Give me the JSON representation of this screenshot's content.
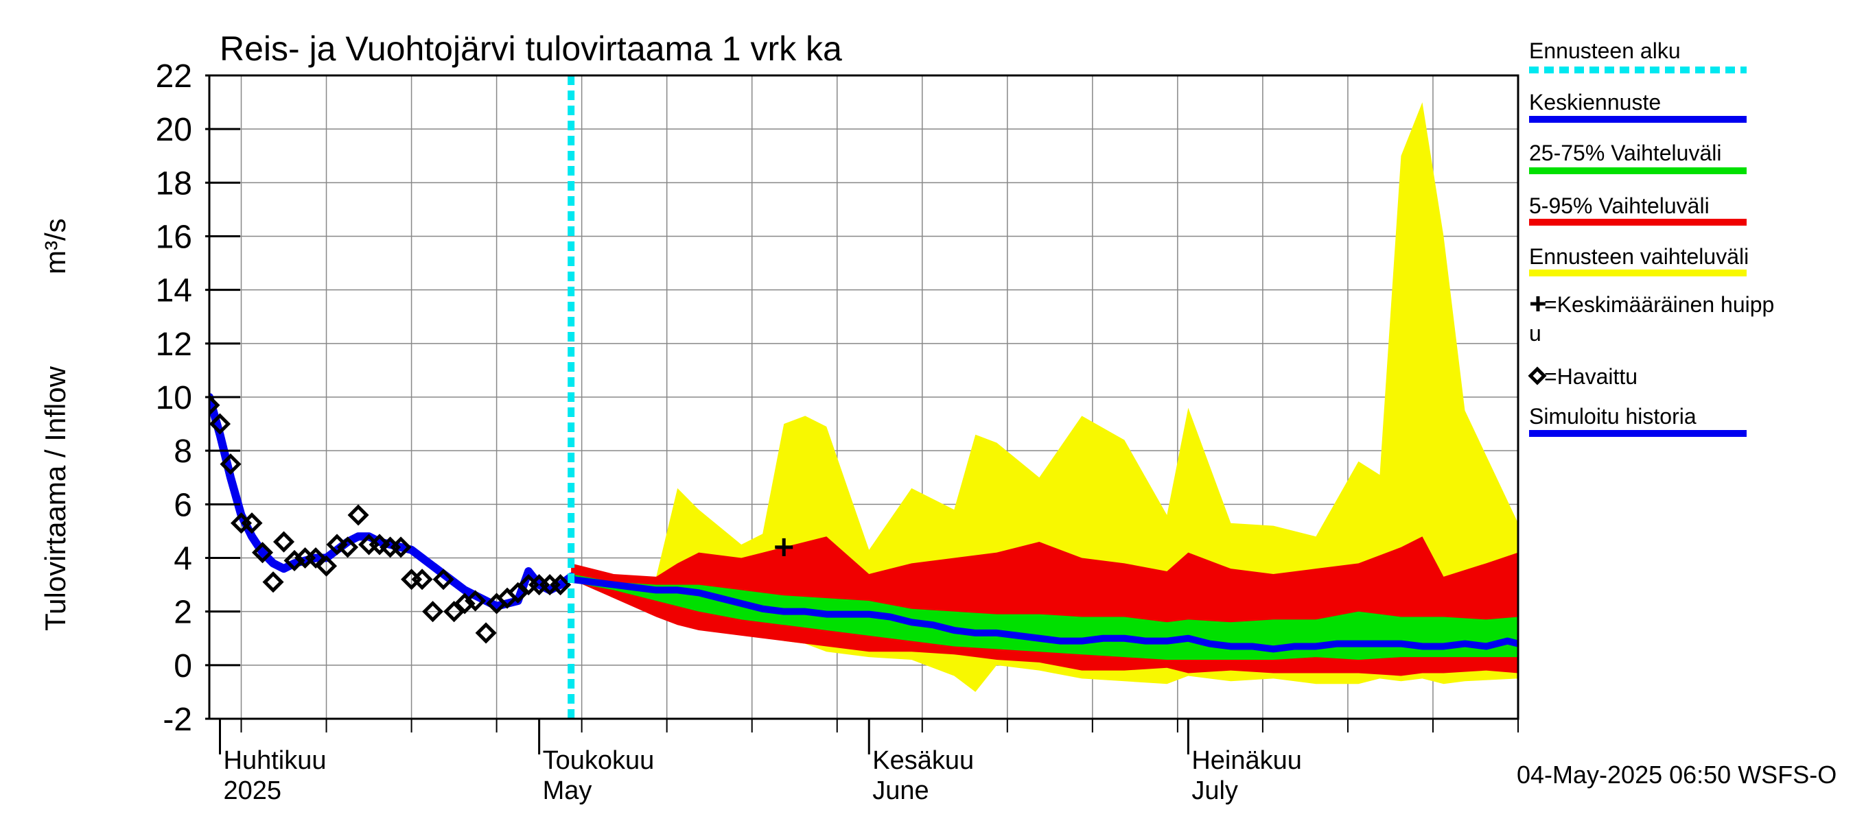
{
  "chart_data": {
    "type": "area",
    "title": "Reis- ja Vuohtojärvi tulovirtaama 1 vrk ka",
    "ylabel": "Tulovirtaama / Inflow",
    "yunit": "m³/s",
    "ylim": [
      -2,
      22
    ],
    "yticks": [
      -2,
      0,
      2,
      4,
      6,
      8,
      10,
      12,
      14,
      16,
      18,
      20,
      22
    ],
    "xlim": [
      "2025-03-31",
      "2025-08-01"
    ],
    "grid": true,
    "month_labels": [
      {
        "date": "2025-04-01",
        "fi": "Huhtikuu",
        "en": "2025"
      },
      {
        "date": "2025-05-01",
        "fi": "Toukokuu",
        "en": "May"
      },
      {
        "date": "2025-06-01",
        "fi": "Kesäkuu",
        "en": "June"
      },
      {
        "date": "2025-07-01",
        "fi": "Heinäkuu",
        "en": "July"
      }
    ],
    "forecast_start": "2025-05-04",
    "legend": {
      "placement": "right",
      "entries": [
        {
          "label": "Ennusteen alku",
          "color": "#00e8f0",
          "style": "dotted-line"
        },
        {
          "label": "Keskiennuste",
          "color": "#0000f0",
          "style": "line"
        },
        {
          "label": "25-75% Vaihteluväli",
          "color": "#00e000",
          "style": "line"
        },
        {
          "label": "5-95% Vaihteluväli",
          "color": "#f00000",
          "style": "line"
        },
        {
          "label": "Ennusteen vaihteluväli",
          "color": "#f8f800",
          "style": "line"
        },
        {
          "label": "=Keskimääräinen huipp",
          "label2": "u",
          "color": "#000000",
          "style": "plus"
        },
        {
          "label": "=Havaittu",
          "color": "#000000",
          "style": "diamond"
        },
        {
          "label": "Simuloitu historia",
          "color": "#0000f0",
          "style": "line"
        }
      ]
    },
    "series": [
      {
        "name": "Simuloitu historia",
        "color": "#0000f0",
        "x": [
          "2025-03-31",
          "2025-04-01",
          "2025-04-02",
          "2025-04-03",
          "2025-04-04",
          "2025-04-05",
          "2025-04-06",
          "2025-04-07",
          "2025-04-08",
          "2025-04-09",
          "2025-04-10",
          "2025-04-11",
          "2025-04-12",
          "2025-04-13",
          "2025-04-14",
          "2025-04-15",
          "2025-04-16",
          "2025-04-17",
          "2025-04-18",
          "2025-04-19",
          "2025-04-20",
          "2025-04-21",
          "2025-04-22",
          "2025-04-23",
          "2025-04-24",
          "2025-04-25",
          "2025-04-26",
          "2025-04-27",
          "2025-04-28",
          "2025-04-29",
          "2025-04-30",
          "2025-05-01",
          "2025-05-02",
          "2025-05-03",
          "2025-05-04"
        ],
        "y": [
          10.0,
          8.6,
          7.0,
          5.6,
          4.8,
          4.2,
          3.8,
          3.6,
          3.8,
          3.9,
          4.0,
          4.0,
          4.3,
          4.6,
          4.8,
          4.8,
          4.6,
          4.5,
          4.4,
          4.3,
          4.0,
          3.7,
          3.4,
          3.1,
          2.8,
          2.6,
          2.4,
          2.2,
          2.3,
          2.4,
          3.5,
          3.0,
          2.8,
          3.0,
          3.3
        ]
      },
      {
        "name": "Havaittu",
        "color": "#000000",
        "x": [
          "2025-03-31",
          "2025-04-01",
          "2025-04-02",
          "2025-04-03",
          "2025-04-04",
          "2025-04-05",
          "2025-04-06",
          "2025-04-07",
          "2025-04-08",
          "2025-04-09",
          "2025-04-10",
          "2025-04-11",
          "2025-04-12",
          "2025-04-13",
          "2025-04-14",
          "2025-04-15",
          "2025-04-16",
          "2025-04-17",
          "2025-04-18",
          "2025-04-19",
          "2025-04-20",
          "2025-04-21",
          "2025-04-22",
          "2025-04-23",
          "2025-04-24",
          "2025-04-25",
          "2025-04-26",
          "2025-04-27",
          "2025-04-28",
          "2025-04-29",
          "2025-04-30",
          "2025-05-01",
          "2025-05-02",
          "2025-05-03"
        ],
        "y": [
          9.7,
          9.0,
          7.5,
          5.3,
          5.3,
          4.2,
          3.1,
          4.6,
          3.9,
          4.0,
          4.0,
          3.7,
          4.5,
          4.4,
          5.6,
          4.5,
          4.5,
          4.4,
          4.4,
          3.2,
          3.2,
          2.0,
          3.2,
          2.0,
          2.3,
          2.4,
          1.2,
          2.3,
          2.5,
          2.7,
          3.0,
          3.0,
          3.0,
          3.0
        ]
      },
      {
        "name": "Ennusteen vaihteluväli",
        "color": "#f8f800",
        "x": [
          "2025-05-04",
          "2025-05-08",
          "2025-05-12",
          "2025-05-14",
          "2025-05-16",
          "2025-05-20",
          "2025-05-22",
          "2025-05-24",
          "2025-05-26",
          "2025-05-28",
          "2025-06-01",
          "2025-06-05",
          "2025-06-09",
          "2025-06-11",
          "2025-06-13",
          "2025-06-17",
          "2025-06-21",
          "2025-06-25",
          "2025-06-29",
          "2025-07-01",
          "2025-07-05",
          "2025-07-09",
          "2025-07-13",
          "2025-07-17",
          "2025-07-19",
          "2025-07-21",
          "2025-07-23",
          "2025-07-25",
          "2025-07-27",
          "2025-08-01"
        ],
        "upper": [
          3.6,
          3.2,
          3.3,
          6.6,
          5.8,
          4.5,
          4.9,
          9.0,
          9.3,
          8.9,
          4.3,
          6.6,
          5.8,
          8.6,
          8.3,
          7.0,
          9.3,
          8.4,
          5.6,
          9.6,
          5.3,
          5.2,
          4.8,
          7.6,
          7.1,
          19.0,
          21.0,
          16.0,
          9.5,
          5.3
        ],
        "lower": [
          3.6,
          2.7,
          1.9,
          1.5,
          1.4,
          1.3,
          1.1,
          0.9,
          0.8,
          0.5,
          0.3,
          0.2,
          -0.4,
          -1.0,
          0.0,
          -0.2,
          -0.5,
          -0.6,
          -0.7,
          -0.4,
          -0.6,
          -0.5,
          -0.7,
          -0.7,
          -0.5,
          -0.6,
          -0.5,
          -0.7,
          -0.6,
          -0.5
        ]
      },
      {
        "name": "5-95% Vaihteluväli",
        "color": "#f00000",
        "x": [
          "2025-05-04",
          "2025-05-08",
          "2025-05-12",
          "2025-05-14",
          "2025-05-16",
          "2025-05-20",
          "2025-05-24",
          "2025-05-28",
          "2025-06-01",
          "2025-06-05",
          "2025-06-09",
          "2025-06-13",
          "2025-06-17",
          "2025-06-21",
          "2025-06-25",
          "2025-06-29",
          "2025-07-01",
          "2025-07-05",
          "2025-07-09",
          "2025-07-13",
          "2025-07-17",
          "2025-07-21",
          "2025-07-23",
          "2025-07-25",
          "2025-07-29",
          "2025-08-01"
        ],
        "upper": [
          3.8,
          3.4,
          3.3,
          3.8,
          4.2,
          4.0,
          4.4,
          4.8,
          3.4,
          3.8,
          4.0,
          4.2,
          4.6,
          4.0,
          3.8,
          3.5,
          4.2,
          3.6,
          3.4,
          3.6,
          3.8,
          4.4,
          4.8,
          3.3,
          3.8,
          4.2
        ],
        "lower": [
          3.2,
          2.5,
          1.8,
          1.5,
          1.3,
          1.1,
          0.9,
          0.7,
          0.5,
          0.5,
          0.4,
          0.2,
          0.1,
          -0.2,
          -0.2,
          -0.1,
          -0.3,
          -0.2,
          -0.3,
          -0.3,
          -0.3,
          -0.4,
          -0.3,
          -0.3,
          -0.2,
          -0.3
        ]
      },
      {
        "name": "25-75% Vaihteluväli",
        "color": "#00e000",
        "x": [
          "2025-05-04",
          "2025-05-08",
          "2025-05-12",
          "2025-05-16",
          "2025-05-20",
          "2025-05-24",
          "2025-05-28",
          "2025-06-01",
          "2025-06-05",
          "2025-06-09",
          "2025-06-13",
          "2025-06-17",
          "2025-06-21",
          "2025-06-25",
          "2025-06-29",
          "2025-07-01",
          "2025-07-05",
          "2025-07-09",
          "2025-07-13",
          "2025-07-17",
          "2025-07-21",
          "2025-07-25",
          "2025-07-29",
          "2025-08-01"
        ],
        "upper": [
          3.4,
          3.1,
          3.0,
          3.0,
          2.8,
          2.6,
          2.5,
          2.4,
          2.1,
          2.0,
          1.9,
          1.9,
          1.8,
          1.8,
          1.6,
          1.7,
          1.6,
          1.7,
          1.7,
          2.0,
          1.8,
          1.8,
          1.7,
          1.8
        ],
        "lower": [
          3.1,
          2.8,
          2.4,
          2.0,
          1.7,
          1.5,
          1.3,
          1.1,
          0.9,
          0.7,
          0.6,
          0.5,
          0.4,
          0.3,
          0.2,
          0.2,
          0.2,
          0.2,
          0.3,
          0.2,
          0.3,
          0.3,
          0.3,
          0.3
        ]
      },
      {
        "name": "Keskiennuste",
        "color": "#0000f0",
        "x": [
          "2025-05-04",
          "2025-05-06",
          "2025-05-08",
          "2025-05-10",
          "2025-05-12",
          "2025-05-14",
          "2025-05-16",
          "2025-05-18",
          "2025-05-20",
          "2025-05-22",
          "2025-05-24",
          "2025-05-26",
          "2025-05-28",
          "2025-05-30",
          "2025-06-01",
          "2025-06-03",
          "2025-06-05",
          "2025-06-07",
          "2025-06-09",
          "2025-06-11",
          "2025-06-13",
          "2025-06-15",
          "2025-06-17",
          "2025-06-19",
          "2025-06-21",
          "2025-06-23",
          "2025-06-25",
          "2025-06-27",
          "2025-06-29",
          "2025-07-01",
          "2025-07-03",
          "2025-07-05",
          "2025-07-07",
          "2025-07-09",
          "2025-07-11",
          "2025-07-13",
          "2025-07-15",
          "2025-07-17",
          "2025-07-19",
          "2025-07-21",
          "2025-07-23",
          "2025-07-25",
          "2025-07-27",
          "2025-07-29",
          "2025-07-31",
          "2025-08-01"
        ],
        "y": [
          3.2,
          3.1,
          3.0,
          2.9,
          2.8,
          2.8,
          2.7,
          2.5,
          2.3,
          2.1,
          2.0,
          2.0,
          1.9,
          1.9,
          1.9,
          1.8,
          1.6,
          1.5,
          1.3,
          1.2,
          1.2,
          1.1,
          1.0,
          0.9,
          0.9,
          1.0,
          1.0,
          0.9,
          0.9,
          1.0,
          0.8,
          0.7,
          0.7,
          0.6,
          0.7,
          0.7,
          0.8,
          0.8,
          0.8,
          0.8,
          0.7,
          0.7,
          0.8,
          0.7,
          0.9,
          0.8
        ]
      },
      {
        "name": "Keskimääräinen huippu",
        "color": "#000000",
        "x": [
          "2025-05-24"
        ],
        "y": [
          4.4
        ]
      }
    ]
  },
  "timestamp": "04-May-2025 06:50 WSFS-O"
}
